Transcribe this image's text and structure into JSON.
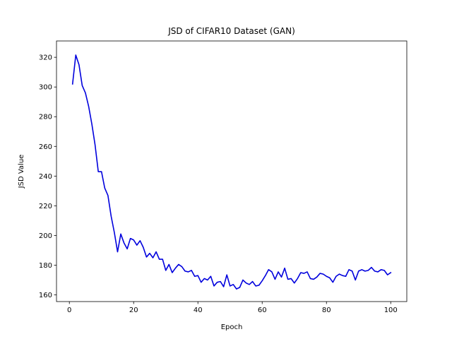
{
  "chart_data": {
    "type": "line",
    "title": "JSD of CIFAR10 Dataset (GAN)",
    "xlabel": "Epoch",
    "ylabel": "JSD Value",
    "xlim": [
      -4,
      105
    ],
    "ylim": [
      155.5,
      331
    ],
    "xticks": [
      0,
      20,
      40,
      60,
      80,
      100
    ],
    "yticks": [
      160,
      180,
      200,
      220,
      240,
      260,
      280,
      300,
      320
    ],
    "grid": false,
    "series": [
      {
        "color": "#0000dd",
        "x": [
          1,
          2,
          3,
          4,
          5,
          6,
          7,
          8,
          9,
          10,
          11,
          12,
          13,
          14,
          15,
          16,
          17,
          18,
          19,
          20,
          21,
          22,
          23,
          24,
          25,
          26,
          27,
          28,
          29,
          30,
          31,
          32,
          33,
          34,
          35,
          36,
          37,
          38,
          39,
          40,
          41,
          42,
          43,
          44,
          45,
          46,
          47,
          48,
          49,
          50,
          51,
          52,
          53,
          54,
          55,
          56,
          57,
          58,
          59,
          60,
          61,
          62,
          63,
          64,
          65,
          66,
          67,
          68,
          69,
          70,
          71,
          72,
          73,
          74,
          75,
          76,
          77,
          78,
          79,
          80,
          81,
          82,
          83,
          84,
          85,
          86,
          87,
          88,
          89,
          90,
          91,
          92,
          93,
          94,
          95,
          96,
          97,
          98,
          99,
          100
        ],
        "y": [
          302,
          321.5,
          315,
          301,
          296,
          287,
          275,
          261,
          243,
          243,
          232,
          227,
          213,
          202,
          189,
          201,
          195,
          191,
          198,
          197,
          193.5,
          196.5,
          192,
          185.5,
          188,
          185,
          189,
          184,
          184,
          176.5,
          180.5,
          175,
          178,
          180.5,
          179,
          176,
          175.5,
          176.5,
          172.5,
          173,
          168.5,
          171,
          170,
          172.5,
          166,
          168.5,
          169,
          165.5,
          173.5,
          166,
          167,
          164,
          165,
          170,
          168,
          167,
          169,
          166,
          166.5,
          169.5,
          173,
          177,
          175.5,
          170.5,
          175.5,
          172,
          178,
          170.5,
          171,
          168,
          171,
          175,
          174.5,
          175.5,
          171,
          170.5,
          172,
          174.5,
          174,
          172.5,
          171.5,
          168.5,
          172.5,
          174,
          173,
          172.5,
          177,
          176,
          170,
          176,
          177,
          176,
          176.5,
          178.5,
          176,
          175.5,
          177,
          176.5,
          173.5,
          175
        ]
      }
    ]
  }
}
